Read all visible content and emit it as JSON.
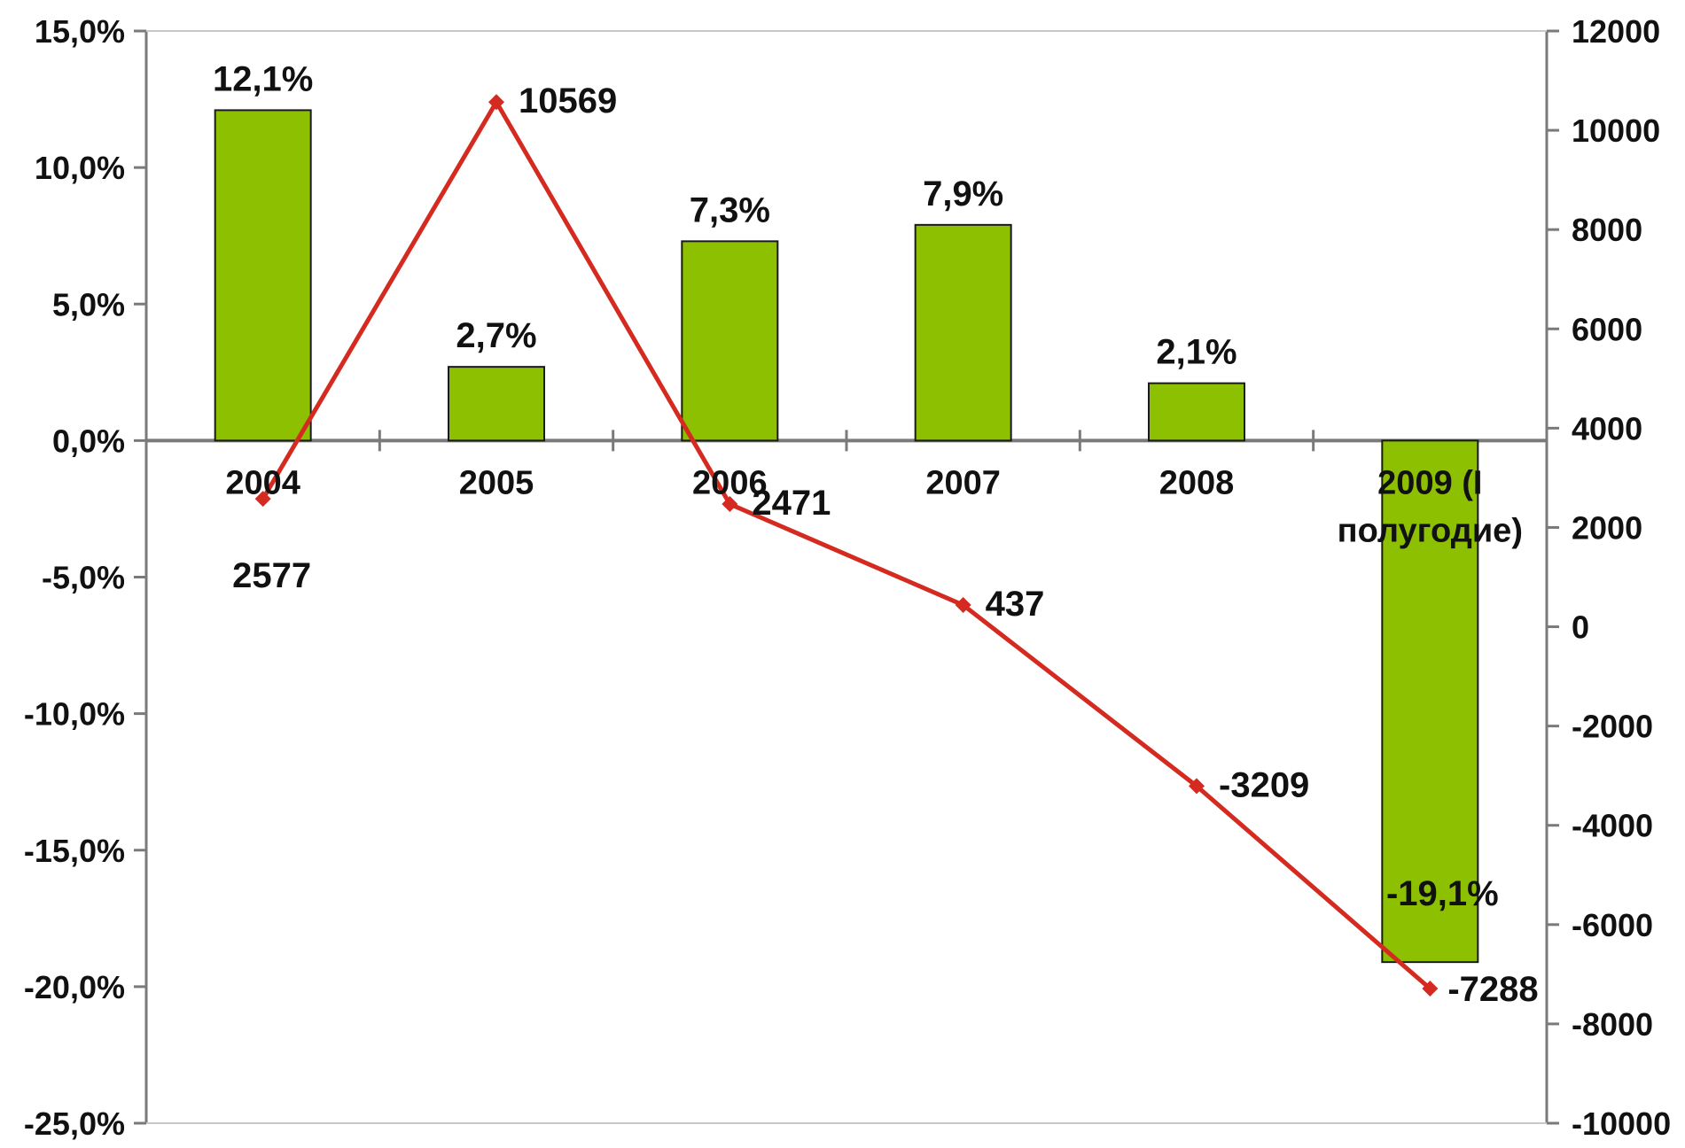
{
  "colors": {
    "bar": "#8cc000",
    "bar_stroke": "#1a1a1a",
    "line": "#d42a20",
    "axis": "#7a7a7a",
    "text": "#111111"
  },
  "chart_data": {
    "type": "bar+line",
    "categories": [
      "2004",
      "2005",
      "2006",
      "2007",
      "2008",
      "2009 (I полугодие)"
    ],
    "category_lines": [
      [
        "2004"
      ],
      [
        "2005"
      ],
      [
        "2006"
      ],
      [
        "2007"
      ],
      [
        "2008"
      ],
      [
        "2009 (I",
        "полугодие)"
      ]
    ],
    "bars": {
      "axis": "left",
      "values": [
        12.1,
        2.7,
        7.3,
        7.9,
        2.1,
        -19.1
      ],
      "labels": [
        "12,1%",
        "2,7%",
        "7,3%",
        "7,9%",
        "2,1%",
        "-19,1%"
      ]
    },
    "line": {
      "axis": "right",
      "values": [
        2577,
        10569,
        2471,
        437,
        -3209,
        -7288
      ],
      "labels": [
        "2577",
        "10569",
        "2471",
        "437",
        "-3209",
        "-7288"
      ]
    },
    "left_axis": {
      "min": -25,
      "max": 15,
      "step": 5,
      "tick_labels": [
        "15,0%",
        "10,0%",
        "5,0%",
        "0,0%",
        "-5,0%",
        "-10,0%",
        "-15,0%",
        "-20,0%",
        "-25,0%"
      ]
    },
    "right_axis": {
      "min": -10000,
      "max": 12000,
      "step": 2000,
      "tick_labels": [
        "12000",
        "10000",
        "8000",
        "6000",
        "4000",
        "2000",
        "0",
        "-2000",
        "-4000",
        "-6000",
        "-8000",
        "-10000"
      ]
    },
    "grid": false,
    "legend": "none",
    "title": "",
    "xlabel": "",
    "ylabel": ""
  }
}
